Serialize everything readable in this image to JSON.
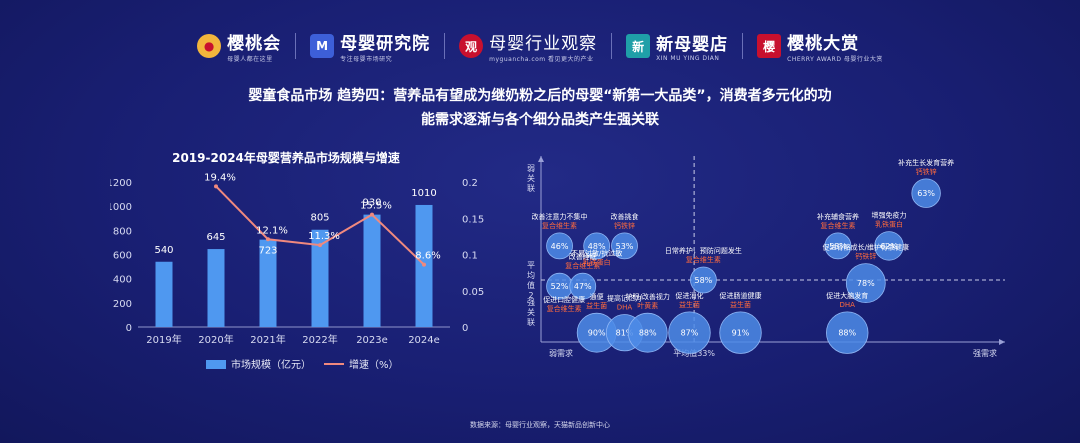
{
  "logos": [
    {
      "name": "樱桃会",
      "sub": "母婴人都在这里",
      "mark": "●",
      "mark_color": "#f2b53c"
    },
    {
      "name": "母婴研究院",
      "sub": "专注母婴市场研究",
      "mark": "M",
      "mark_color": "#3d5fd8"
    },
    {
      "name": "母婴行业观察",
      "sub": "myguancha.com 看见更大的产业",
      "mark": "观",
      "mark_color": "#c8102e"
    },
    {
      "name": "新母婴店",
      "sub": "XIN MU YING DIAN",
      "mark": "新",
      "mark_color": "#1f9fa8"
    },
    {
      "name": "樱桃大赏",
      "sub": "CHERRY AWARD 母婴行业大赏",
      "mark": "樱",
      "mark_color": "#c8102e"
    }
  ],
  "heading": {
    "line1": "婴童食品市场  趋势四：营养品有望成为继奶粉之后的母婴“新第一大品类”，消费者多元化的功",
    "line2": "能需求逐渐与各个细分品类产生强关联"
  },
  "source": "数据来源：母婴行业观察，天猫新品创新中心",
  "colors": {
    "bar": "#4f98f0",
    "line": "#f0897e",
    "bubble": "#4d8ce8",
    "label_red": "#ff6a3d"
  },
  "chart_data": [
    {
      "type": "bar",
      "title": "2019-2024年母婴营养品市场规模与增速",
      "categories": [
        "2019年",
        "2020年",
        "2021年",
        "2022年",
        "2023e",
        "2024e"
      ],
      "series": [
        {
          "name": "市场规模（亿元）",
          "type": "bar",
          "values": [
            540,
            645,
            723,
            805,
            930,
            1010
          ],
          "value_labels": [
            "540",
            "645",
            "723",
            "805",
            "930",
            "1010"
          ]
        },
        {
          "name": "增速（%）",
          "type": "line",
          "axis": "right",
          "values": [
            null,
            0.194,
            0.121,
            0.113,
            0.155,
            0.086
          ],
          "value_labels": [
            "",
            "19.4%",
            "12.1%",
            "11.3%",
            "15.5%",
            "8.6%"
          ]
        }
      ],
      "ylim": [
        0,
        1200
      ],
      "yticks": [
        "0",
        "200",
        "400",
        "600",
        "800",
        "1000",
        "1200"
      ],
      "y2lim": [
        0,
        0.2
      ],
      "y2ticks": [
        "0",
        "0.05",
        "0.1",
        "0.15",
        "0.2"
      ],
      "legend": "bottom"
    },
    {
      "type": "scatter",
      "xlabel_low": "弱需求",
      "xlabel_mid": "平均值33%",
      "xlabel_high": "强需求",
      "ylabel_top": "弱关联",
      "ylabel_mid": "平均值2",
      "ylabel_bottom": "强关联",
      "x_range": [
        0,
        100
      ],
      "y_range": [
        0,
        6
      ],
      "x_avg": 33,
      "y_avg": 2,
      "points": [
        {
          "pct": "46%",
          "x": 4,
          "y": 3.1,
          "r": 1.0,
          "name": "改善注意力不集中",
          "tag": "复合维生素"
        },
        {
          "pct": "48%",
          "x": 12,
          "y": 3.1,
          "r": 1.0,
          "name": "",
          "tag": ""
        },
        {
          "pct": "53%",
          "x": 18,
          "y": 3.1,
          "r": 1.0,
          "name": "改善挑食",
          "tag": "钙铁锌"
        },
        {
          "pct": "",
          "x": 12,
          "y": 2.7,
          "r": 0,
          "name": "不易过敏/抗过敏",
          "tag": "乳铁蛋白"
        },
        {
          "pct": "52%",
          "x": 4,
          "y": 1.8,
          "r": 1.0,
          "name": "",
          "tag": ""
        },
        {
          "pct": "47%",
          "x": 9,
          "y": 1.8,
          "r": 1.0,
          "name": "改善睡眠",
          "tag": "复合维生素"
        },
        {
          "pct": "",
          "x": 5,
          "y": 1.2,
          "r": 0,
          "name": "促进口腔健康",
          "tag": "复合维生素"
        },
        {
          "pct": "90%",
          "x": 12,
          "y": 0.3,
          "r": 1.5,
          "name": "通便",
          "tag": "益生菌"
        },
        {
          "pct": "81%",
          "x": 18,
          "y": 0.3,
          "r": 1.4,
          "name": "提高记忆力",
          "tag": "DHA"
        },
        {
          "pct": "88%",
          "x": 23,
          "y": 0.3,
          "r": 1.5,
          "name": "护眼/改善视力",
          "tag": "叶黄素"
        },
        {
          "pct": "87%",
          "x": 32,
          "y": 0.3,
          "r": 1.6,
          "name": "促进消化",
          "tag": "益生菌"
        },
        {
          "pct": "58%",
          "x": 35,
          "y": 2.0,
          "r": 1.0,
          "name": "日常养护，预防问题发生",
          "tag": "复合维生素"
        },
        {
          "pct": "91%",
          "x": 43,
          "y": 0.3,
          "r": 1.6,
          "name": "促进肠道健康",
          "tag": "益生菌"
        },
        {
          "pct": "58%",
          "x": 64,
          "y": 3.1,
          "r": 1.0,
          "name": "补充辅食营养",
          "tag": "复合维生素"
        },
        {
          "pct": "62%",
          "x": 75,
          "y": 3.1,
          "r": 1.1,
          "name": "增强免疫力",
          "tag": "乳铁蛋白"
        },
        {
          "pct": "63%",
          "x": 83,
          "y": 4.8,
          "r": 1.1,
          "name": "补充生长发育营养",
          "tag": "钙铁锌"
        },
        {
          "pct": "78%",
          "x": 70,
          "y": 1.9,
          "r": 1.5,
          "name": "促进骨骼成长/维护骨骼健康",
          "tag": "钙铁锌"
        },
        {
          "pct": "88%",
          "x": 66,
          "y": 0.3,
          "r": 1.6,
          "name": "促进大脑发育",
          "tag": "DHA"
        }
      ]
    }
  ]
}
